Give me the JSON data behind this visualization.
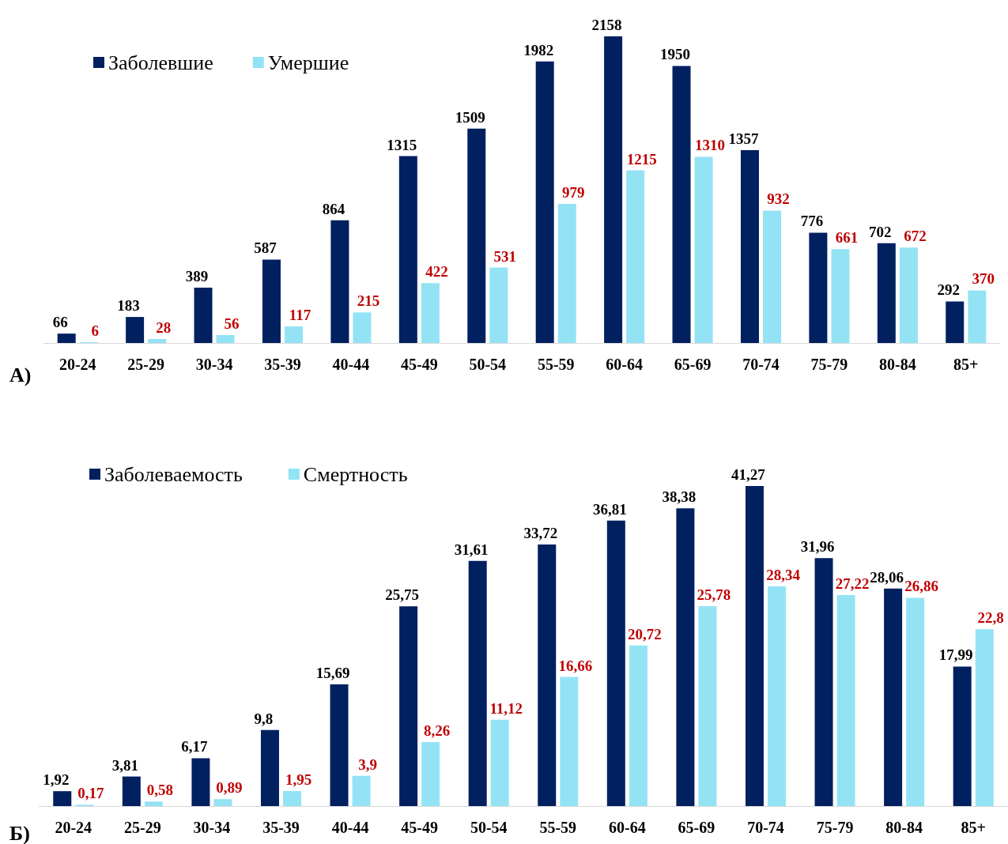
{
  "chart_data": [
    {
      "type": "bar",
      "categories": [
        "20-24",
        "25-29",
        "30-34",
        "35-39",
        "40-44",
        "45-49",
        "50-54",
        "55-59",
        "60-64",
        "65-69",
        "70-74",
        "75-79",
        "80-84",
        "85+"
      ],
      "series": [
        {
          "name": "Заболевшие",
          "color": "#002060",
          "values": [
            66,
            183,
            389,
            587,
            864,
            1315,
            1509,
            1982,
            2158,
            1950,
            1357,
            776,
            702,
            292
          ]
        },
        {
          "name": "Умершие",
          "color": "#93e3f5",
          "values": [
            6,
            28,
            56,
            117,
            215,
            422,
            531,
            979,
            1215,
            1310,
            932,
            661,
            672,
            370
          ]
        }
      ],
      "data_labels": true,
      "legend": "top left",
      "annotations": [
        "А)"
      ]
    },
    {
      "type": "bar",
      "categories": [
        "20-24",
        "25-29",
        "30-34",
        "35-39",
        "40-44",
        "45-49",
        "50-54",
        "55-59",
        "60-64",
        "65-69",
        "70-74",
        "75-79",
        "80-84",
        "85+"
      ],
      "series": [
        {
          "name": "Заболеваемость",
          "color": "#002060",
          "values": [
            1.92,
            3.81,
            6.17,
            9.8,
            15.69,
            25.75,
            31.61,
            33.72,
            36.81,
            38.38,
            41.27,
            31.96,
            28.06,
            17.99
          ],
          "value_labels": [
            "1,92",
            "3,81",
            "6,17",
            "9,8",
            "15,69",
            "25,75",
            "31,61",
            "33,72",
            "36,81",
            "38,38",
            "41,27",
            "31,96",
            "28,06",
            "17,99"
          ]
        },
        {
          "name": "Смертность",
          "color": "#93e3f5",
          "values": [
            0.17,
            0.58,
            0.89,
            1.95,
            3.9,
            8.26,
            11.12,
            16.66,
            20.72,
            25.78,
            28.34,
            27.22,
            26.86,
            22.8
          ],
          "value_labels": [
            "0,17",
            "0,58",
            "0,89",
            "1,95",
            "3,9",
            "8,26",
            "11,12",
            "16,66",
            "20,72",
            "25,78",
            "28,34",
            "27,22",
            "26,86",
            "22,8"
          ]
        }
      ],
      "legend": "top left",
      "annotations": [
        "Б)"
      ]
    }
  ]
}
